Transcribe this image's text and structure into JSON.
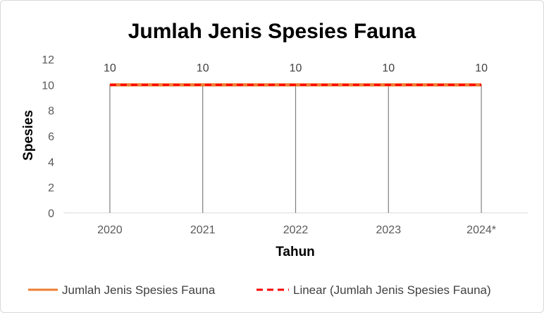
{
  "chart_data": {
    "type": "line",
    "title": "Jumlah Jenis Spesies Fauna",
    "xlabel": "Tahun",
    "ylabel": "Spesies",
    "categories": [
      "2020",
      "2021",
      "2022",
      "2023",
      "2024*"
    ],
    "series": [
      {
        "name": "Jumlah Jenis Spesies Fauna",
        "values": [
          10,
          10,
          10,
          10,
          10
        ],
        "color": "#ED7D31",
        "style": "solid"
      },
      {
        "name": "Linear (Jumlah Jenis Spesies Fauna)",
        "values": [
          10,
          10,
          10,
          10,
          10
        ],
        "color": "#FF0000",
        "style": "dashed"
      }
    ],
    "data_labels": [
      "10",
      "10",
      "10",
      "10",
      "10"
    ],
    "yticks": [
      "0",
      "2",
      "4",
      "6",
      "8",
      "10",
      "12"
    ],
    "ylim": [
      0,
      12
    ],
    "drop_lines": true,
    "grid": false,
    "legend_position": "bottom"
  }
}
